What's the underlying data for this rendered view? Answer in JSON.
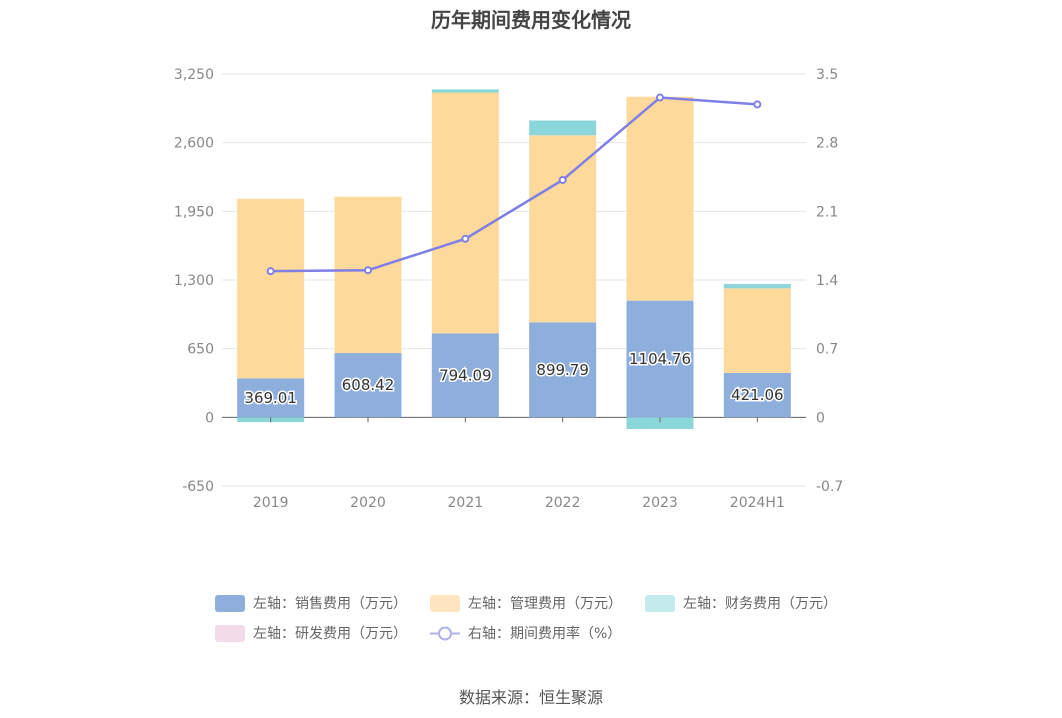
{
  "chart_data": {
    "type": "bar",
    "title": "历年期间费用变化情况",
    "categories": [
      "2019",
      "2020",
      "2021",
      "2022",
      "2023",
      "2024H1"
    ],
    "stacked": true,
    "left_axis": {
      "min": -650,
      "max": 3250,
      "ticks": [
        "-650",
        "0",
        "650",
        "1,300",
        "1,950",
        "2,600",
        "3,250"
      ]
    },
    "right_axis": {
      "min": -0.7,
      "max": 3.5,
      "ticks": [
        "-0.7",
        "0",
        "0.7",
        "1.4",
        "2.1",
        "2.8",
        "3.5"
      ]
    },
    "series": [
      {
        "name": "左轴：销售费用（万元）",
        "type": "bar",
        "axis": "left",
        "color": "#8eaedc",
        "values": [
          369.01,
          608.42,
          794.09,
          899.79,
          1104.76,
          421.06
        ],
        "labels": [
          "369.01",
          "608.42",
          "794.09",
          "899.79",
          "1104.76",
          "421.06"
        ]
      },
      {
        "name": "左轴：管理费用（万元）",
        "type": "bar",
        "axis": "left",
        "color": "#fed99c",
        "values": [
          1700,
          1480,
          2280,
          1770,
          1930,
          800
        ]
      },
      {
        "name": "左轴：财务费用（万元）",
        "type": "bar",
        "axis": "left",
        "color": "#8ad6d9",
        "values": [
          -45,
          0,
          30,
          140,
          -110,
          40
        ]
      },
      {
        "name": "左轴：研发费用（万元）",
        "type": "bar",
        "axis": "left",
        "color": "#f0dce8",
        "values": [
          0,
          0,
          0,
          0,
          0,
          0
        ]
      },
      {
        "name": "右轴：期间费用率（%）",
        "type": "line",
        "axis": "right",
        "color": "#7f7fe6",
        "values": [
          1.49,
          1.5,
          1.82,
          2.42,
          3.26,
          3.19
        ]
      }
    ],
    "legend_position": "bottom",
    "grid": true
  },
  "source": "数据来源：恒生聚源"
}
